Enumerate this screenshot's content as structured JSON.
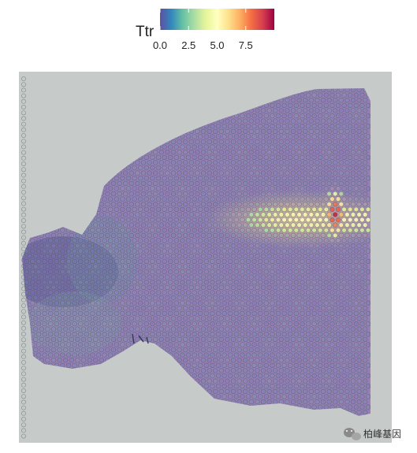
{
  "chart_data": {
    "type": "heatmap",
    "subtype": "spatial-transcriptomics",
    "gene": "Ttr",
    "legend": {
      "title": "Ttr",
      "placement": "top",
      "range": [
        0,
        10
      ],
      "ticks": [
        0.0,
        2.5,
        5.0,
        7.5
      ],
      "tick_labels": [
        "0.0",
        "2.5",
        "5.0",
        "7.5"
      ],
      "palette": [
        "#5e4fa2",
        "#3288bd",
        "#66c2a5",
        "#abdda4",
        "#e6f598",
        "#ffffbf",
        "#fee08b",
        "#fdae61",
        "#f46d43",
        "#d53e4f",
        "#9e0142"
      ]
    },
    "grid": false,
    "expression_regions": [
      {
        "region": "background tissue",
        "level": 0.5
      },
      {
        "region": "horizontal band (right half)",
        "level": 5.0
      },
      {
        "region": "hotspot (right)",
        "level": 9.5
      }
    ]
  },
  "colors": {
    "slide": "#c6cbca",
    "tissue": "#9a7fb6",
    "tissue_dark": "#5f5894"
  },
  "watermark": {
    "text": "柏峰基因",
    "icon": "wechat-icon"
  }
}
